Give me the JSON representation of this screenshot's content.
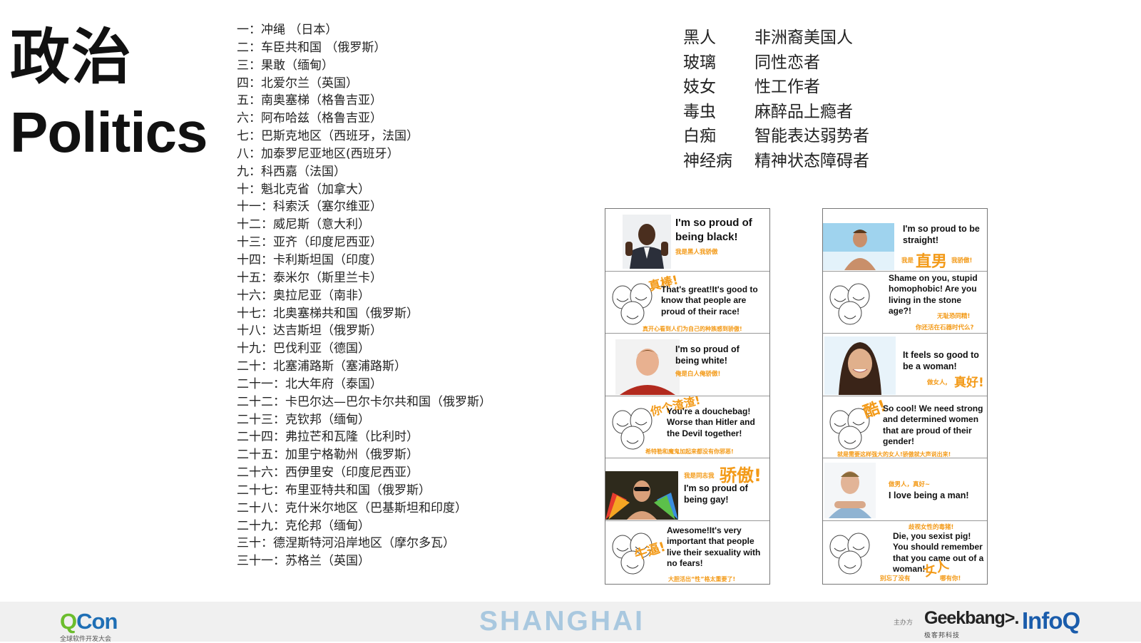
{
  "title": {
    "zh": "政治",
    "en": "Politics"
  },
  "regions": [
    "一：冲绳 （日本）",
    "二：车臣共和国 （俄罗斯）",
    "三：果敢（缅甸）",
    "四：北爱尔兰（英国）",
    "五：南奥塞梯（格鲁吉亚）",
    "六：阿布哈兹（格鲁吉亚）",
    "七：巴斯克地区（西班牙，法国）",
    "八：加泰罗尼亚地区(西班牙）",
    "九：科西嘉（法国）",
    "十：魁北克省（加拿大）",
    "十一：科索沃（塞尔维亚）",
    "十二：威尼斯（意大利）",
    "十三：亚齐（印度尼西亚）",
    "十四：卡利斯坦国（印度）",
    "十五：泰米尔（斯里兰卡）",
    "十六：奥拉尼亚（南非）",
    "十七：北奥塞梯共和国（俄罗斯）",
    "十八：达吉斯坦（俄罗斯）",
    "十九：巴伐利亚（德国）",
    "二十：北塞浦路斯（塞浦路斯）",
    "二十一：北大年府（泰国）",
    "二十二：卡巴尔达—巴尔卡尔共和国（俄罗斯）",
    "二十三：克钦邦（缅甸）",
    "二十四：弗拉芒和瓦隆（比利时）",
    "二十五：加里宁格勒州（俄罗斯）",
    "二十六：西伊里安（印度尼西亚）",
    "二十七：布里亚特共和国（俄罗斯）",
    "二十八：克什米尔地区（巴基斯坦和印度）",
    "二十九：克伦邦（缅甸）",
    "三十：德涅斯特河沿岸地区（摩尔多瓦）",
    "三十一：苏格兰（英国）"
  ],
  "terms": [
    {
      "old": "黑人",
      "new": "非洲裔美国人"
    },
    {
      "old": "玻璃",
      "new": "同性恋者"
    },
    {
      "old": "妓女",
      "new": "性工作者"
    },
    {
      "old": "毒虫",
      "new": "麻醉品上瘾者"
    },
    {
      "old": "白痴",
      "new": "智能表达弱势者"
    },
    {
      "old": "神经病",
      "new": "精神状态障碍者"
    }
  ],
  "comic_left": [
    {
      "en": "I'm so proud of being black!",
      "cn": "我是黑人我骄傲",
      "photo": "smiling-man-suit-thumbs-up"
    },
    {
      "big": "真棒!",
      "en": "That's great!It's good to know that people are proud of their race!",
      "cn": "真开心看到人们为自己的种族感到骄傲!"
    },
    {
      "en": "I'm so proud of being white!",
      "cn": "俺是白人俺骄傲!",
      "photo": "young-man-red-shirt"
    },
    {
      "big": "你个渣渣!",
      "en": "You're a douchebag! Worse than Hitler and the Devil together!",
      "cn": "希特勒和魔鬼加起来都没有你邪恶!"
    },
    {
      "big_prefix": "我是同志我",
      "big": "骄傲!",
      "en": "I'm so proud of being gay!",
      "photo": "man-sunglasses-rainbow-wings"
    },
    {
      "big": "牛逼!",
      "en": "Awesome!It's very important that people live their sexuality with no fears!",
      "cn": "大胆活出“性”格太重要了!"
    }
  ],
  "comic_right": [
    {
      "en": "I'm so proud to be straight!",
      "cn_prefix": "我是",
      "big": "直男",
      "cn_suffix": "我骄傲!",
      "photo": "shirtless-man-beach"
    },
    {
      "en": "Shame on you, stupid homophobic! Are you living in the stone age?!",
      "cn": "无耻恐同精!",
      "cn2": "你还活在石器时代么?"
    },
    {
      "en": "It feels so good to be a woman!",
      "cn_prefix": "做女人,",
      "big": "真好!",
      "photo": "smiling-woman"
    },
    {
      "big": "酷!",
      "en": "So cool! We need strong and determined women that are proud of their gender!",
      "cn": "就是需要这样强大的女人!骄傲就大声说出来!"
    },
    {
      "cn": "做男人，真好~",
      "en": "I love being a man!",
      "photo": "man-arms-crossed"
    },
    {
      "cn": "歧视女性的毒猪!",
      "en": "Die, you sexist pig! You should remember that you came out of a woman!",
      "big": "女人",
      "cn2": "别忘了没有",
      "cn3": "哪有你!"
    }
  ],
  "footer": {
    "qcon_q": "Q",
    "qcon_rest": "Con",
    "qcon_sub": "全球软件开发大会",
    "city": "SHANGHAI",
    "host": "主办方",
    "geekbang": "Geekbang>.",
    "geekbang_sub": "极客邦科技",
    "infoq": "InfoQ"
  }
}
